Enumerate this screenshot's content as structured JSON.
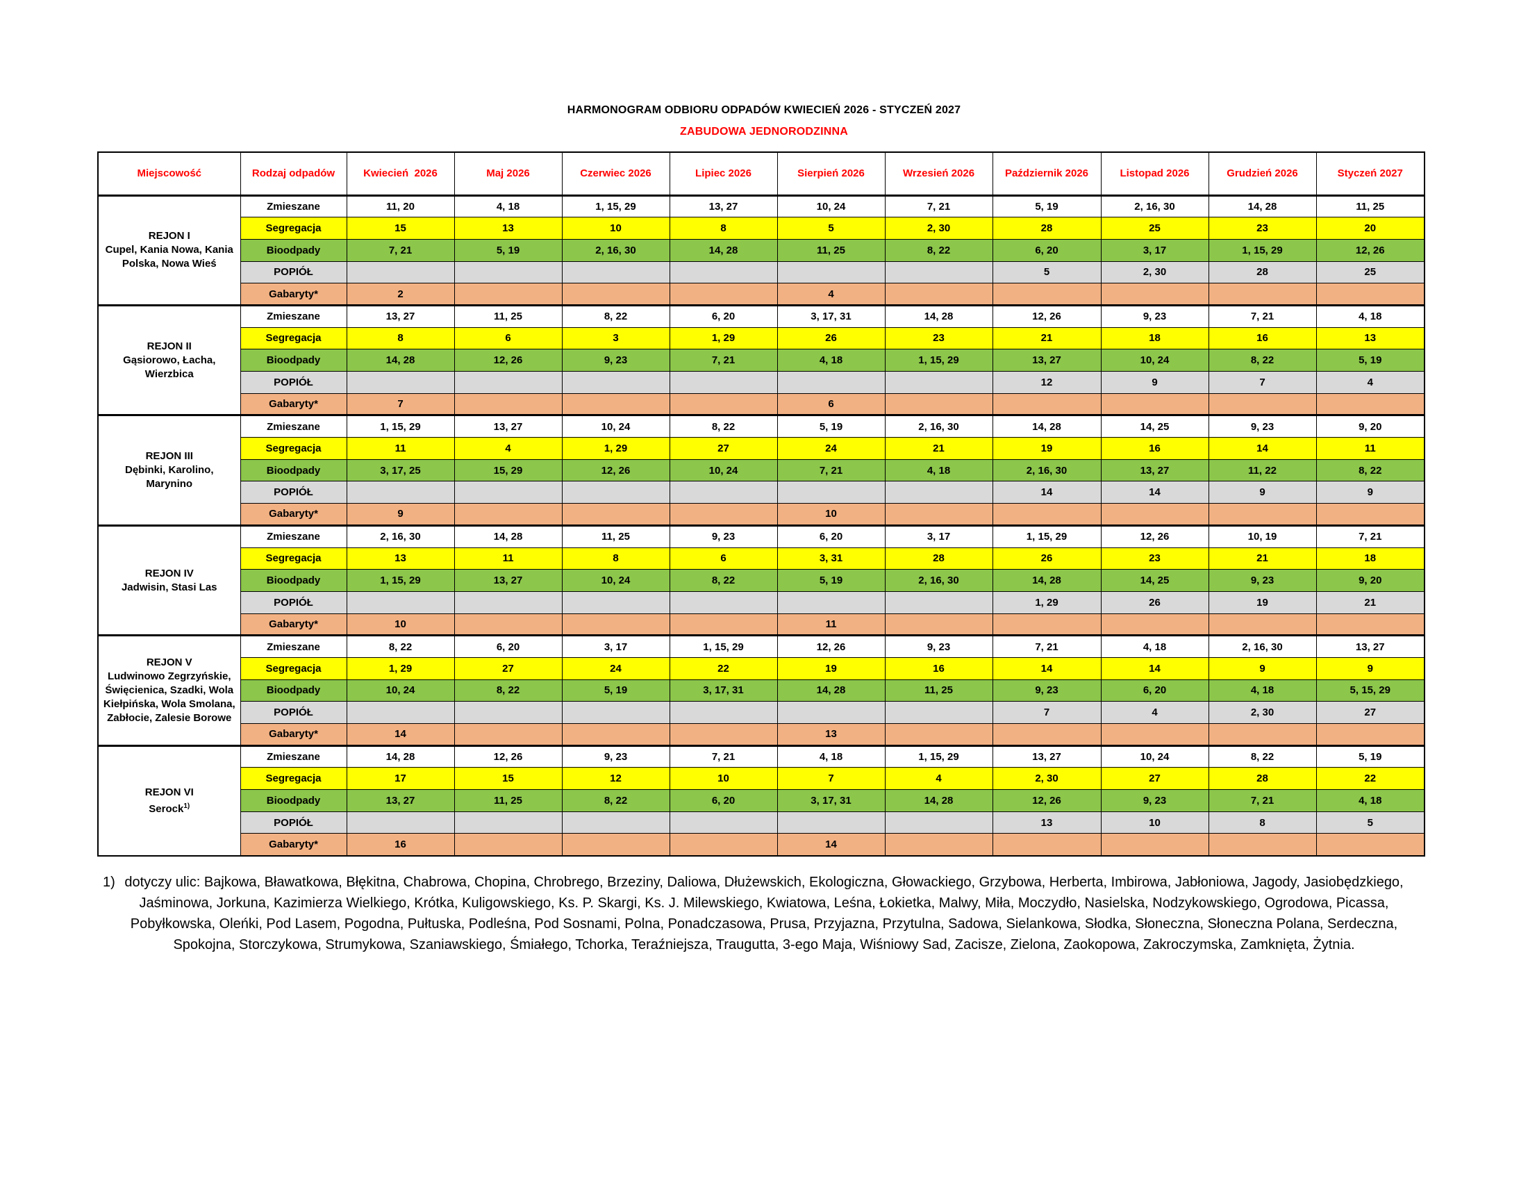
{
  "title": "HARMONOGRAM ODBIORU ODPADÓW KWIECIEŃ 2026 - STYCZEŃ 2027",
  "subtitle": "ZABUDOWA JEDNORODZINNA",
  "colors": {
    "header_text": "#FF0000",
    "zmieszane": "#FFFFFF",
    "segregacja": "#FFFF00",
    "bioodpady": "#8CC64B",
    "popiol": "#D9D9D9",
    "gabaryty": "#F2B183",
    "border": "#000000"
  },
  "table": {
    "columns": [
      "Miejscowość",
      "Rodzaj odpadów",
      "Kwiecień  2026",
      "Maj 2026",
      "Czerwiec 2026",
      "Lipiec 2026",
      "Sierpień 2026",
      "Wrzesień 2026",
      "Październik 2026",
      "Listopad 2026",
      "Grudzień 2026",
      "Styczeń 2027"
    ],
    "waste_types": [
      {
        "label": "Zmieszane",
        "color": "#FFFFFF"
      },
      {
        "label": "Segregacja",
        "color": "#FFFF00"
      },
      {
        "label": "Bioodpady",
        "color": "#8CC64B"
      },
      {
        "label": "POPIÓŁ",
        "color": "#D9D9D9"
      },
      {
        "label": "Gabaryty*",
        "color": "#F2B183"
      }
    ],
    "regions": [
      {
        "name": "REJON I",
        "localities": "Cupel, Kania Nowa, Kania Polska, Nowa Wieś",
        "sup": "",
        "schedule": [
          [
            "11, 20",
            "4, 18",
            "1, 15, 29",
            "13, 27",
            "10, 24",
            "7, 21",
            "5, 19",
            "2, 16, 30",
            "14, 28",
            "11, 25"
          ],
          [
            "15",
            "13",
            "10",
            "8",
            "5",
            "2, 30",
            "28",
            "25",
            "23",
            "20"
          ],
          [
            "7, 21",
            "5, 19",
            "2, 16, 30",
            "14, 28",
            "11, 25",
            "8, 22",
            "6, 20",
            "3, 17",
            "1, 15, 29",
            "12, 26"
          ],
          [
            "",
            "",
            "",
            "",
            "",
            "",
            "5",
            "2, 30",
            "28",
            "25"
          ],
          [
            "2",
            "",
            "",
            "",
            "4",
            "",
            "",
            "",
            "",
            ""
          ]
        ]
      },
      {
        "name": "REJON II",
        "localities": "Gąsiorowo, Łacha, Wierzbica",
        "sup": "",
        "schedule": [
          [
            "13, 27",
            "11, 25",
            "8, 22",
            "6, 20",
            "3, 17, 31",
            "14, 28",
            "12, 26",
            "9, 23",
            "7, 21",
            "4, 18"
          ],
          [
            "8",
            "6",
            "3",
            "1, 29",
            "26",
            "23",
            "21",
            "18",
            "16",
            "13"
          ],
          [
            "14, 28",
            "12, 26",
            "9, 23",
            "7, 21",
            "4, 18",
            "1, 15, 29",
            "13, 27",
            "10, 24",
            "8, 22",
            "5, 19"
          ],
          [
            "",
            "",
            "",
            "",
            "",
            "",
            "12",
            "9",
            "7",
            "4"
          ],
          [
            "7",
            "",
            "",
            "",
            "6",
            "",
            "",
            "",
            "",
            ""
          ]
        ]
      },
      {
        "name": "REJON III",
        "localities": "Dębinki, Karolino, Marynino",
        "sup": "",
        "schedule": [
          [
            "1, 15, 29",
            "13, 27",
            "10, 24",
            "8, 22",
            "5, 19",
            "2, 16, 30",
            "14, 28",
            "14, 25",
            "9, 23",
            "9, 20"
          ],
          [
            "11",
            "4",
            "1, 29",
            "27",
            "24",
            "21",
            "19",
            "16",
            "14",
            "11"
          ],
          [
            "3, 17, 25",
            "15, 29",
            "12, 26",
            "10, 24",
            "7, 21",
            "4, 18",
            "2, 16, 30",
            "13, 27",
            "11, 22",
            "8, 22"
          ],
          [
            "",
            "",
            "",
            "",
            "",
            "",
            "14",
            "14",
            "9",
            "9"
          ],
          [
            "9",
            "",
            "",
            "",
            "10",
            "",
            "",
            "",
            "",
            ""
          ]
        ]
      },
      {
        "name": "REJON IV",
        "localities": "Jadwisin, Stasi Las",
        "sup": "",
        "schedule": [
          [
            "2, 16, 30",
            "14, 28",
            "11, 25",
            "9, 23",
            "6, 20",
            "3, 17",
            "1, 15, 29",
            "12, 26",
            "10, 19",
            "7, 21"
          ],
          [
            "13",
            "11",
            "8",
            "6",
            "3, 31",
            "28",
            "26",
            "23",
            "21",
            "18"
          ],
          [
            "1, 15, 29",
            "13, 27",
            "10, 24",
            "8, 22",
            "5, 19",
            "2, 16, 30",
            "14, 28",
            "14, 25",
            "9, 23",
            "9, 20"
          ],
          [
            "",
            "",
            "",
            "",
            "",
            "",
            "1, 29",
            "26",
            "19",
            "21"
          ],
          [
            "10",
            "",
            "",
            "",
            "11",
            "",
            "",
            "",
            "",
            ""
          ]
        ]
      },
      {
        "name": "REJON V",
        "localities": "Ludwinowo Zegrzyńskie, Święcienica, Szadki, Wola Kiełpińska, Wola Smolana, Zabłocie, Zalesie Borowe",
        "sup": "",
        "schedule": [
          [
            "8, 22",
            "6, 20",
            "3, 17",
            "1, 15, 29",
            "12, 26",
            "9, 23",
            "7, 21",
            "4, 18",
            "2, 16, 30",
            "13, 27"
          ],
          [
            "1, 29",
            "27",
            "24",
            "22",
            "19",
            "16",
            "14",
            "14",
            "9",
            "9"
          ],
          [
            "10, 24",
            "8, 22",
            "5, 19",
            "3, 17, 31",
            "14, 28",
            "11, 25",
            "9, 23",
            "6, 20",
            "4, 18",
            "5, 15, 29"
          ],
          [
            "",
            "",
            "",
            "",
            "",
            "",
            "7",
            "4",
            "2, 30",
            "27"
          ],
          [
            "14",
            "",
            "",
            "",
            "13",
            "",
            "",
            "",
            "",
            ""
          ]
        ]
      },
      {
        "name": "REJON VI",
        "localities": "Serock",
        "sup": "1)",
        "schedule": [
          [
            "14, 28",
            "12, 26",
            "9, 23",
            "7, 21",
            "4, 18",
            "1, 15, 29",
            "13, 27",
            "10, 24",
            "8, 22",
            "5, 19"
          ],
          [
            "17",
            "15",
            "12",
            "10",
            "7",
            "4",
            "2, 30",
            "27",
            "28",
            "22"
          ],
          [
            "13, 27",
            "11, 25",
            "8, 22",
            "6, 20",
            "3, 17, 31",
            "14, 28",
            "12, 26",
            "9, 23",
            "7, 21",
            "4, 18"
          ],
          [
            "",
            "",
            "",
            "",
            "",
            "",
            "13",
            "10",
            "8",
            "5"
          ],
          [
            "16",
            "",
            "",
            "",
            "14",
            "",
            "",
            "",
            "",
            ""
          ]
        ]
      }
    ]
  },
  "footnote": {
    "marker": "1)",
    "lines": [
      "dotyczy ulic: Bajkowa, Bławatkowa, Błękitna, Chabrowa, Chopina, Chrobrego, Brzeziny, Daliowa, Dłużewskich, Ekologiczna, Głowackiego, Grzybowa, Herberta, Imbirowa, Jabłoniowa, Jagody, Jasiobędzkiego,",
      "Jaśminowa, Jorkuna, Kazimierza Wielkiego, Krótka, Kuligowskiego, Ks. P. Skargi, Ks. J. Milewskiego, Kwiatowa, Leśna, Łokietka, Malwy, Miła, Moczydło, Nasielska, Nodzykowskiego, Ogrodowa, Picassa,",
      "Pobyłkowska, Oleńki, Pod Lasem, Pogodna, Pułtuska, Podleśna, Pod Sosnami, Polna, Ponadczasowa, Prusa, Przyjazna, Przytulna, Sadowa, Sielankowa, Słodka, Słoneczna, Słoneczna Polana,  Serdeczna,",
      "Spokojna, Storczykowa, Strumykowa, Szaniawskiego,  Śmiałego, Tchorka, Teraźniejsza, Traugutta, 3-ego Maja, Wiśniowy Sad, Zacisze, Zielona, Zaokopowa, Zakroczymska, Zamknięta, Żytnia."
    ]
  }
}
